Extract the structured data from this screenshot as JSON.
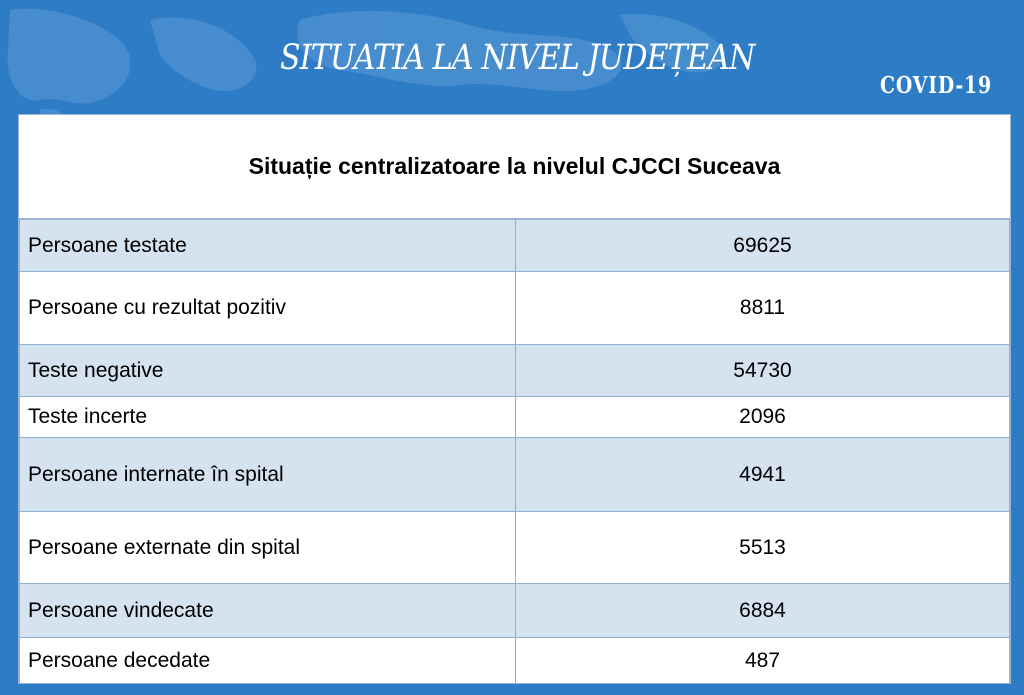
{
  "header": {
    "title": "SITUATIA LA NIVEL JUDEȚEAN",
    "badge": "COVID-19"
  },
  "table": {
    "caption": "Situație centralizatoare la nivelul CJCCI Suceava",
    "rows": [
      {
        "label": "Persoane testate",
        "value": "69625"
      },
      {
        "label": "Persoane cu rezultat pozitiv",
        "value": "8811"
      },
      {
        "label": "Teste negative",
        "value": "54730"
      },
      {
        "label": "Teste incerte",
        "value": "2096"
      },
      {
        "label": "Persoane internate în spital",
        "value": "4941"
      },
      {
        "label": "Persoane externate din spital",
        "value": "5513"
      },
      {
        "label": "Persoane vindecate",
        "value": "6884"
      },
      {
        "label": "Persoane decedate",
        "value": "487"
      }
    ]
  },
  "colors": {
    "background": "#2f7cc6",
    "row_shade": "#d5e2f0",
    "border": "#8fb0d2"
  }
}
